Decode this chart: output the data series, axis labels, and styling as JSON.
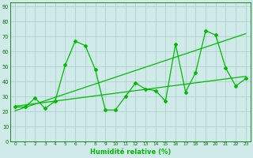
{
  "x": [
    0,
    1,
    2,
    3,
    4,
    5,
    6,
    7,
    8,
    9,
    10,
    11,
    12,
    13,
    14,
    15,
    16,
    17,
    18,
    19,
    20,
    21,
    22,
    23
  ],
  "y_main": [
    23,
    23,
    29,
    22,
    27,
    51,
    67,
    64,
    48,
    21,
    21,
    30,
    39,
    35,
    34,
    27,
    65,
    33,
    46,
    74,
    71,
    49,
    37,
    42
  ],
  "background_color": "#d0eaea",
  "grid_color": "#aacccc",
  "line_color": "#00bb00",
  "marker": "D",
  "marker_size": 2.0,
  "xlabel": "Humidité relative (%)",
  "ylabel_ticks": [
    0,
    10,
    20,
    30,
    40,
    50,
    60,
    70,
    80,
    90
  ],
  "xlim": [
    -0.5,
    23.5
  ],
  "ylim": [
    0,
    93
  ],
  "trend1_x": [
    0,
    23
  ],
  "trend1_y": [
    20.5,
    72.0
  ],
  "trend2_x": [
    0,
    23
  ],
  "trend2_y": [
    23.5,
    43.5
  ]
}
